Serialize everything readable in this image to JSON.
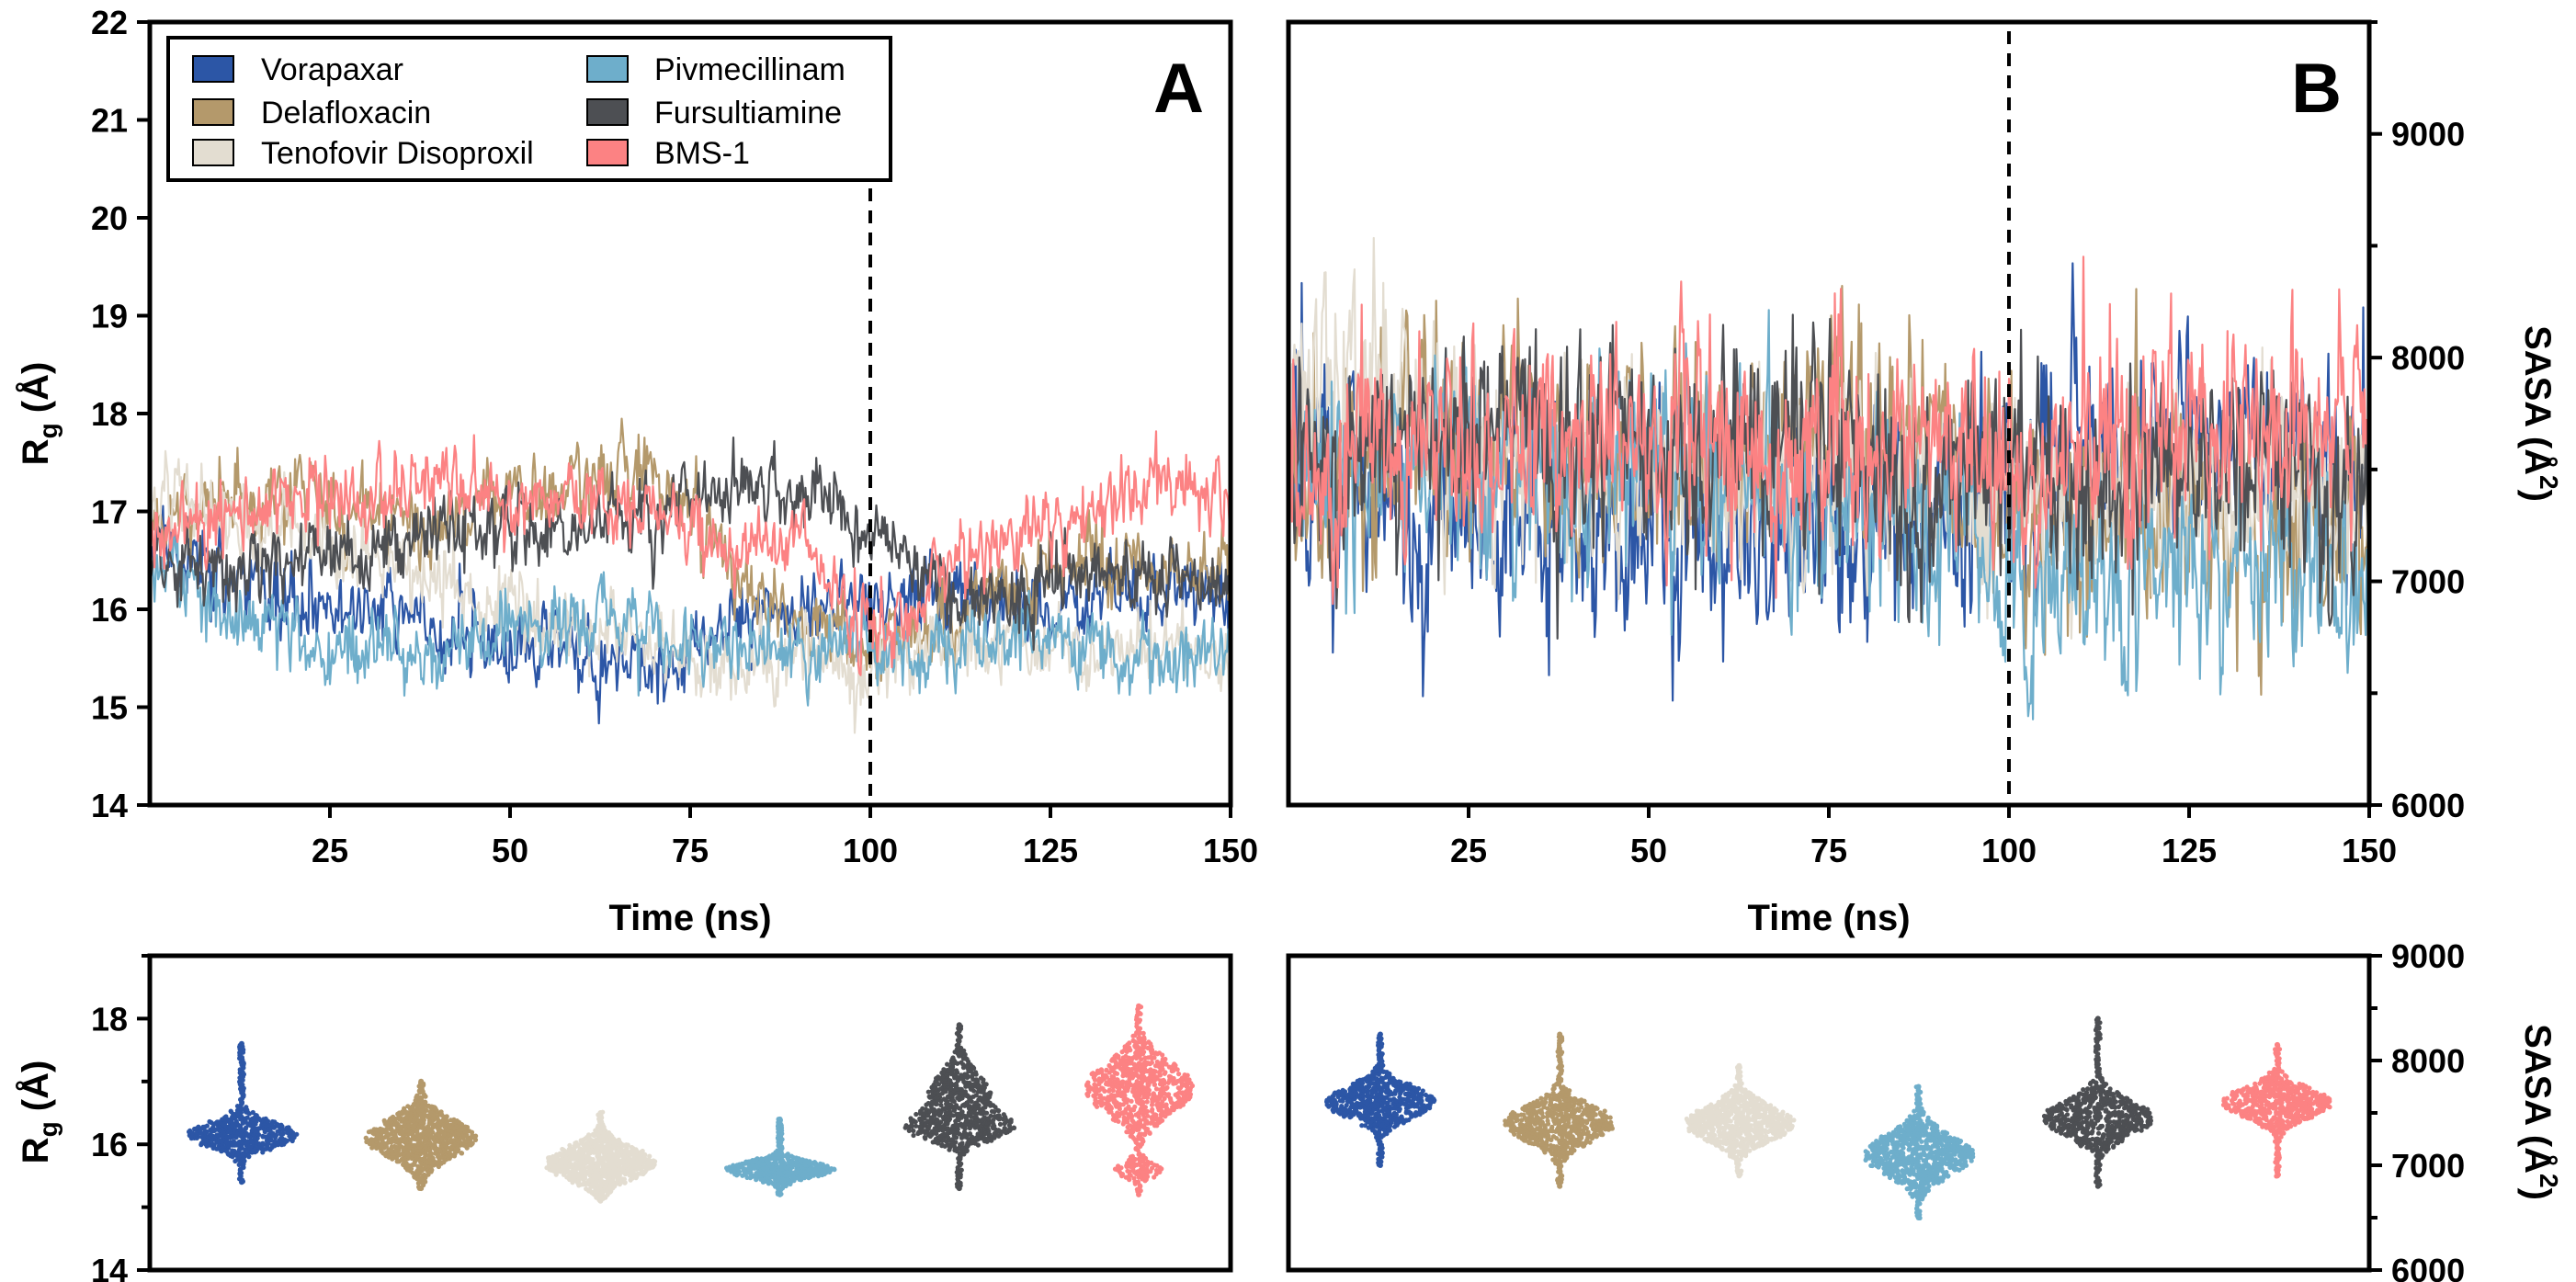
{
  "colors": {
    "Vorapaxar": "#2c56a6",
    "Delafloxacin": "#b4996b",
    "Tenofovir Disoproxil": "#e3ddd1",
    "Pivmecillinam": "#6eaecb",
    "Fursultiamine": "#4d4f53",
    "BMS-1": "#fc8283"
  },
  "legend": {
    "items": [
      "Vorapaxar",
      "Delafloxacin",
      "Tenofovir Disoproxil",
      "Pivmecillinam",
      "Fursultiamine",
      "BMS-1"
    ]
  },
  "chart_data": [
    {
      "id": "A",
      "type": "line",
      "panel_label": "A",
      "xlabel": "Time (ns)",
      "ylabel": "Rg (Å)",
      "ylabel_main": "R",
      "ylabel_sub": "g",
      "ylabel_unit": " (Å)",
      "xlim": [
        0,
        150
      ],
      "ylim": [
        14,
        22
      ],
      "xticks": [
        25,
        50,
        75,
        100,
        125,
        150
      ],
      "yticks": [
        14,
        15,
        16,
        17,
        18,
        19,
        20,
        21,
        22
      ],
      "vline_x": 100,
      "grid": false,
      "legend_position": "top-left",
      "series": [
        {
          "name": "Vorapaxar",
          "x": [
            0,
            10,
            20,
            30,
            40,
            50,
            60,
            70,
            80,
            90,
            100,
            110,
            120,
            130,
            140,
            150
          ],
          "y": [
            16.8,
            16.3,
            16.0,
            16.0,
            15.8,
            15.6,
            15.5,
            15.4,
            15.9,
            16.0,
            16.1,
            16.1,
            16.1,
            16.0,
            16.2,
            16.0
          ]
        },
        {
          "name": "Delafloxacin",
          "x": [
            0,
            10,
            20,
            30,
            40,
            50,
            60,
            70,
            80,
            90,
            100,
            110,
            120,
            130,
            140,
            150
          ],
          "y": [
            16.9,
            17.1,
            17.2,
            17.0,
            16.9,
            17.1,
            17.3,
            17.4,
            16.5,
            15.8,
            15.6,
            15.8,
            16.3,
            16.6,
            16.4,
            16.3
          ]
        },
        {
          "name": "Tenofovir Disoproxil",
          "x": [
            0,
            10,
            20,
            30,
            40,
            50,
            60,
            70,
            80,
            90,
            100,
            110,
            120,
            130,
            140,
            150
          ],
          "y": [
            17.1,
            17.0,
            16.9,
            16.5,
            16.3,
            16.0,
            15.8,
            15.6,
            15.3,
            15.5,
            15.4,
            15.6,
            15.7,
            15.6,
            15.6,
            15.6
          ]
        },
        {
          "name": "Pivmecillinam",
          "x": [
            0,
            10,
            20,
            30,
            40,
            50,
            60,
            70,
            80,
            90,
            100,
            110,
            120,
            130,
            140,
            150
          ],
          "y": [
            16.5,
            16.0,
            15.7,
            15.6,
            15.6,
            15.7,
            16.0,
            15.8,
            15.6,
            15.6,
            15.6,
            15.7,
            15.7,
            15.6,
            15.6,
            15.5
          ]
        },
        {
          "name": "Fursultiamine",
          "x": [
            0,
            10,
            20,
            30,
            40,
            50,
            60,
            70,
            80,
            90,
            100,
            110,
            120,
            130,
            140,
            150
          ],
          "y": [
            16.5,
            16.4,
            16.5,
            16.6,
            16.9,
            16.8,
            16.9,
            17.0,
            17.2,
            17.3,
            16.8,
            16.2,
            16.2,
            16.3,
            16.3,
            16.2
          ]
        },
        {
          "name": "BMS-1",
          "x": [
            0,
            10,
            20,
            30,
            40,
            50,
            60,
            70,
            80,
            90,
            100,
            110,
            120,
            130,
            140,
            150
          ],
          "y": [
            16.7,
            16.9,
            17.2,
            17.1,
            17.4,
            17.1,
            17.2,
            17.0,
            16.6,
            16.8,
            15.7,
            16.4,
            16.8,
            17.0,
            17.4,
            17.0
          ]
        }
      ]
    },
    {
      "id": "B",
      "type": "line",
      "panel_label": "B",
      "xlabel": "Time (ns)",
      "ylabel": "SASA (Å2)",
      "ylabel_main": "SASA (Å",
      "ylabel_sup": "2",
      "ylabel_close": ")",
      "xlim": [
        0,
        150
      ],
      "ylim": [
        6000,
        9500
      ],
      "xticks": [
        25,
        50,
        75,
        100,
        125,
        150
      ],
      "yticks": [
        6000,
        7000,
        8000,
        9000
      ],
      "yaxis_side": "right",
      "vline_x": 100,
      "grid": false,
      "series": [
        {
          "name": "Vorapaxar",
          "x": [
            0,
            10,
            20,
            30,
            40,
            50,
            60,
            70,
            80,
            90,
            100,
            110,
            120,
            130,
            140,
            150
          ],
          "y": [
            7600,
            7400,
            7200,
            7300,
            7200,
            7300,
            7150,
            7250,
            7350,
            7300,
            7400,
            7600,
            7650,
            7600,
            7600,
            7550
          ]
        },
        {
          "name": "Delafloxacin",
          "x": [
            0,
            10,
            20,
            30,
            40,
            50,
            60,
            70,
            80,
            90,
            100,
            110,
            120,
            130,
            140,
            150
          ],
          "y": [
            7400,
            7500,
            7650,
            7600,
            7500,
            7550,
            7600,
            7700,
            7650,
            7600,
            7200,
            7300,
            7250,
            7300,
            7350,
            7300
          ]
        },
        {
          "name": "Tenofovir Disoproxil",
          "x": [
            0,
            10,
            20,
            30,
            40,
            50,
            60,
            70,
            80,
            90,
            100,
            110,
            120,
            130,
            140,
            150
          ],
          "y": [
            7800,
            7900,
            7700,
            7600,
            7500,
            7500,
            7450,
            7400,
            7450,
            7400,
            7350,
            7400,
            7400,
            7450,
            7400,
            7400
          ]
        },
        {
          "name": "Pivmecillinam",
          "x": [
            0,
            10,
            20,
            30,
            40,
            50,
            60,
            70,
            80,
            90,
            100,
            110,
            120,
            130,
            140,
            150
          ],
          "y": [
            7500,
            7500,
            7550,
            7600,
            7450,
            7500,
            7450,
            7400,
            7300,
            7150,
            6950,
            7000,
            7000,
            7000,
            7050,
            7100
          ]
        },
        {
          "name": "Fursultiamine",
          "x": [
            0,
            10,
            20,
            30,
            40,
            50,
            60,
            70,
            80,
            90,
            100,
            110,
            120,
            130,
            140,
            150
          ],
          "y": [
            7500,
            7600,
            7650,
            7700,
            7500,
            7550,
            7500,
            7700,
            7500,
            7450,
            7450,
            7450,
            7500,
            7500,
            7450,
            7450
          ]
        },
        {
          "name": "BMS-1",
          "x": [
            0,
            10,
            20,
            30,
            40,
            50,
            60,
            70,
            80,
            90,
            100,
            110,
            120,
            130,
            140,
            150
          ],
          "y": [
            7500,
            7550,
            7600,
            7600,
            7550,
            7600,
            7600,
            7650,
            7600,
            7550,
            7550,
            7600,
            7650,
            7650,
            7700,
            7600
          ]
        }
      ]
    },
    {
      "id": "C",
      "type": "scatter",
      "subtype": "violin-swarm",
      "ylabel": "Rg (Å)",
      "ylabel_main": "R",
      "ylabel_sub": "g",
      "ylabel_unit": " (Å)",
      "ylim": [
        14,
        19
      ],
      "yticks": [
        14,
        16,
        18
      ],
      "categories": [
        "Vorapaxar",
        "Delafloxacin",
        "Tenofovir Disoproxil",
        "Pivmecillinam",
        "Fursultiamine",
        "BMS-1"
      ],
      "distributions": [
        {
          "name": "Vorapaxar",
          "min": 15.4,
          "max": 17.6,
          "modes": [
            {
              "center": 16.15,
              "sd": 0.2,
              "weight": 1.0
            }
          ]
        },
        {
          "name": "Delafloxacin",
          "min": 15.3,
          "max": 17.0,
          "modes": [
            {
              "center": 16.1,
              "sd": 0.3,
              "weight": 1.0
            }
          ]
        },
        {
          "name": "Tenofovir Disoproxil",
          "min": 15.1,
          "max": 16.5,
          "modes": [
            {
              "center": 15.7,
              "sd": 0.25,
              "weight": 1.0
            }
          ]
        },
        {
          "name": "Pivmecillinam",
          "min": 15.2,
          "max": 16.4,
          "modes": [
            {
              "center": 15.6,
              "sd": 0.12,
              "weight": 1.0
            }
          ]
        },
        {
          "name": "Fursultiamine",
          "min": 15.3,
          "max": 17.9,
          "modes": [
            {
              "center": 16.25,
              "sd": 0.2,
              "weight": 0.6
            },
            {
              "center": 16.8,
              "sd": 0.35,
              "weight": 0.4
            }
          ]
        },
        {
          "name": "BMS-1",
          "min": 15.2,
          "max": 18.2,
          "modes": [
            {
              "center": 15.6,
              "sd": 0.12,
              "weight": 0.3
            },
            {
              "center": 16.9,
              "sd": 0.4,
              "weight": 0.7
            }
          ]
        }
      ]
    },
    {
      "id": "D",
      "type": "scatter",
      "subtype": "violin-swarm",
      "ylabel": "SASA (Å2)",
      "ylabel_main": "SASA (Å",
      "ylabel_sup": "2",
      "ylabel_close": ")",
      "ylim": [
        6000,
        9000
      ],
      "yticks": [
        6000,
        7000,
        8000,
        9000
      ],
      "yaxis_side": "right",
      "categories": [
        "Vorapaxar",
        "Delafloxacin",
        "Tenofovir Disoproxil",
        "Pivmecillinam",
        "Fursultiamine",
        "BMS-1"
      ],
      "distributions": [
        {
          "name": "Vorapaxar",
          "min": 7000,
          "max": 8250,
          "modes": [
            {
              "center": 7600,
              "sd": 150,
              "weight": 1.0
            }
          ]
        },
        {
          "name": "Delafloxacin",
          "min": 6800,
          "max": 8250,
          "modes": [
            {
              "center": 7400,
              "sd": 170,
              "weight": 1.0
            }
          ]
        },
        {
          "name": "Tenofovir Disoproxil",
          "min": 6900,
          "max": 7950,
          "modes": [
            {
              "center": 7400,
              "sd": 160,
              "weight": 1.0
            }
          ]
        },
        {
          "name": "Pivmecillinam",
          "min": 6500,
          "max": 7750,
          "modes": [
            {
              "center": 7100,
              "sd": 190,
              "weight": 1.0
            }
          ]
        },
        {
          "name": "Fursultiamine",
          "min": 6800,
          "max": 8400,
          "modes": [
            {
              "center": 7450,
              "sd": 170,
              "weight": 1.0
            }
          ]
        },
        {
          "name": "BMS-1",
          "min": 6900,
          "max": 8150,
          "modes": [
            {
              "center": 7600,
              "sd": 140,
              "weight": 1.0
            }
          ]
        }
      ]
    }
  ]
}
